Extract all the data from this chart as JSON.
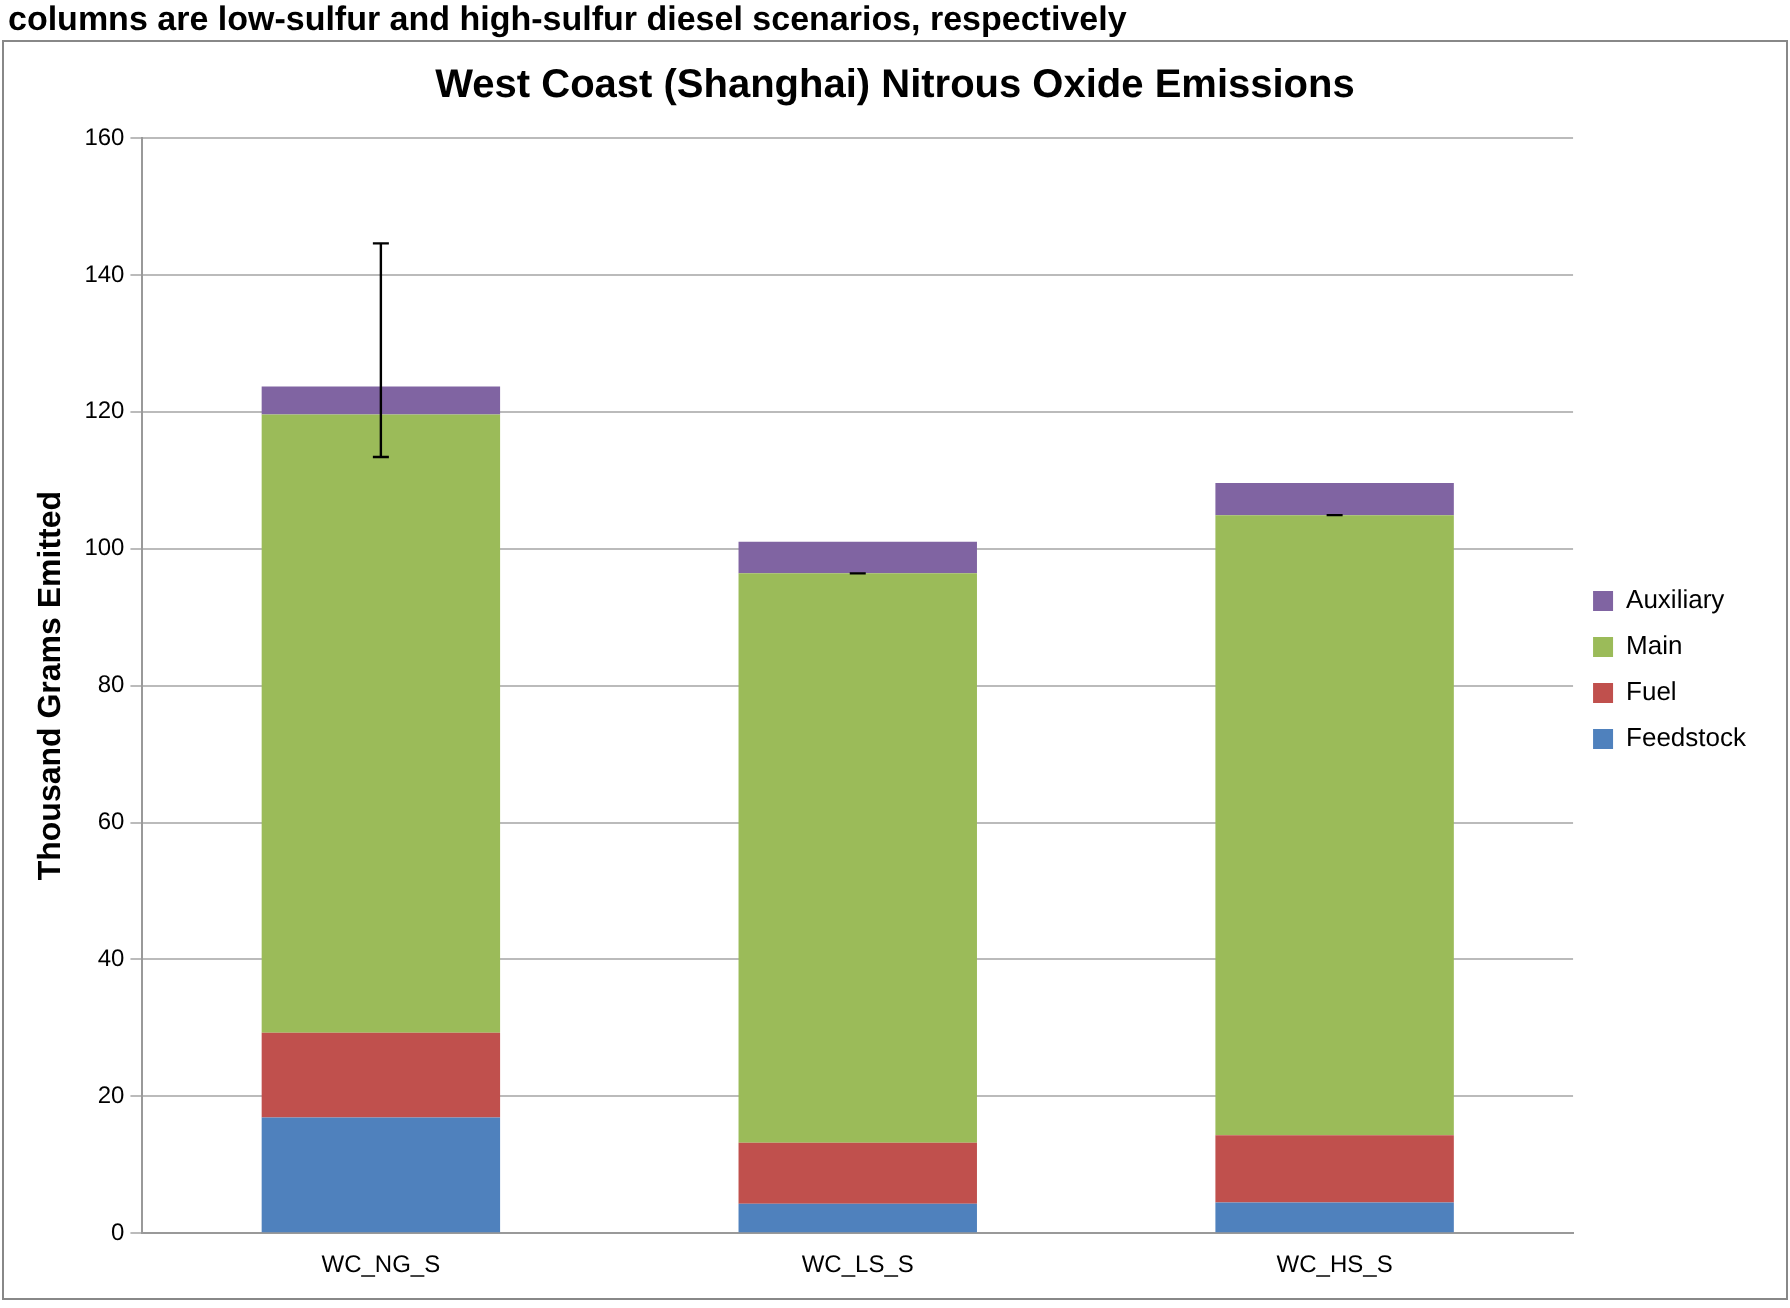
{
  "chart_data": {
    "type": "bar",
    "title": "West Coast (Shanghai) Nitrous Oxide Emissions",
    "ylabel": "Thousand Grams Emitted",
    "annotations": [
      "columns are low-sulfur and high-sulfur diesel scenarios, respectively"
    ],
    "categories": [
      "WC_NG_S",
      "WC_LS_S",
      "WC_HS_S"
    ],
    "stacked": true,
    "series": [
      {
        "name": "Feedstock",
        "color": "#4f81bd",
        "values": [
          16.9,
          4.3,
          4.5
        ]
      },
      {
        "name": "Fuel",
        "color": "#c0504d",
        "values": [
          12.4,
          8.9,
          9.8
        ]
      },
      {
        "name": "Main",
        "color": "#9bbb59",
        "values": [
          90.3,
          83.2,
          90.6
        ],
        "errors": [
          [
            113.4,
            144.6
          ],
          0,
          0
        ]
      },
      {
        "name": "Auxiliary",
        "color": "#8064a2",
        "values": [
          4.1,
          4.6,
          4.7
        ]
      }
    ],
    "ylim": [
      0,
      160
    ],
    "yticks": [
      0,
      20,
      40,
      60,
      80,
      100,
      120,
      140,
      160
    ],
    "grid": "y",
    "legend": "right"
  }
}
